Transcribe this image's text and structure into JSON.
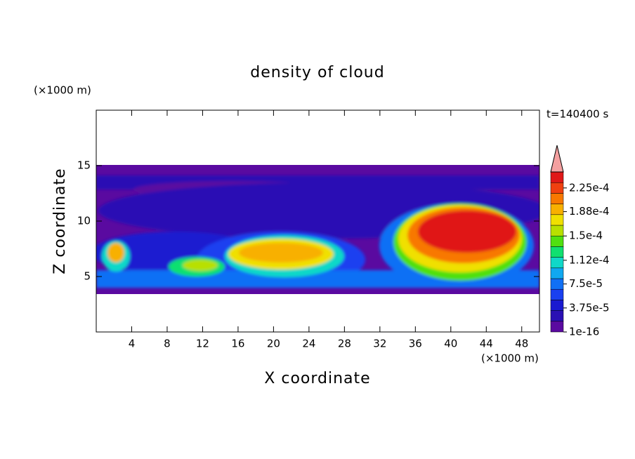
{
  "chart_data": {
    "type": "contour",
    "title": "density of cloud",
    "time_label": "t=140400 s",
    "x_label": "X coordinate",
    "y_label": "Z coordinate",
    "x_unit": "(×1000 m)",
    "y_unit": "(×1000 m)",
    "xlim": [
      0,
      50
    ],
    "ylim": [
      0,
      20
    ],
    "xticks": [
      4,
      8,
      12,
      16,
      20,
      24,
      28,
      32,
      36,
      40,
      44,
      48
    ],
    "yticks": [
      5,
      10,
      15
    ],
    "colorbar": {
      "range": [
        0,
        0.00025
      ],
      "ticks": [
        {
          "value": 1e-16,
          "label": "1e-16"
        },
        {
          "value": 3.75e-05,
          "label": "3.75e-5"
        },
        {
          "value": 7.5e-05,
          "label": "7.5e-5"
        },
        {
          "value": 0.000112,
          "label": "1.12e-4"
        },
        {
          "value": 0.00015,
          "label": "1.5e-4"
        },
        {
          "value": 0.000188,
          "label": "1.88e-4"
        },
        {
          "value": 0.000225,
          "label": "2.25e-4"
        }
      ],
      "colors": [
        "#5a0aa0",
        "#2a10b4",
        "#1a1ad0",
        "#1a40f0",
        "#1070f5",
        "#10a8f0",
        "#10d8c8",
        "#10e070",
        "#50e010",
        "#b8e000",
        "#f0e000",
        "#f8b000",
        "#f87800",
        "#f04010",
        "#e01818"
      ],
      "extend_color": "#f4a0a0"
    }
  }
}
